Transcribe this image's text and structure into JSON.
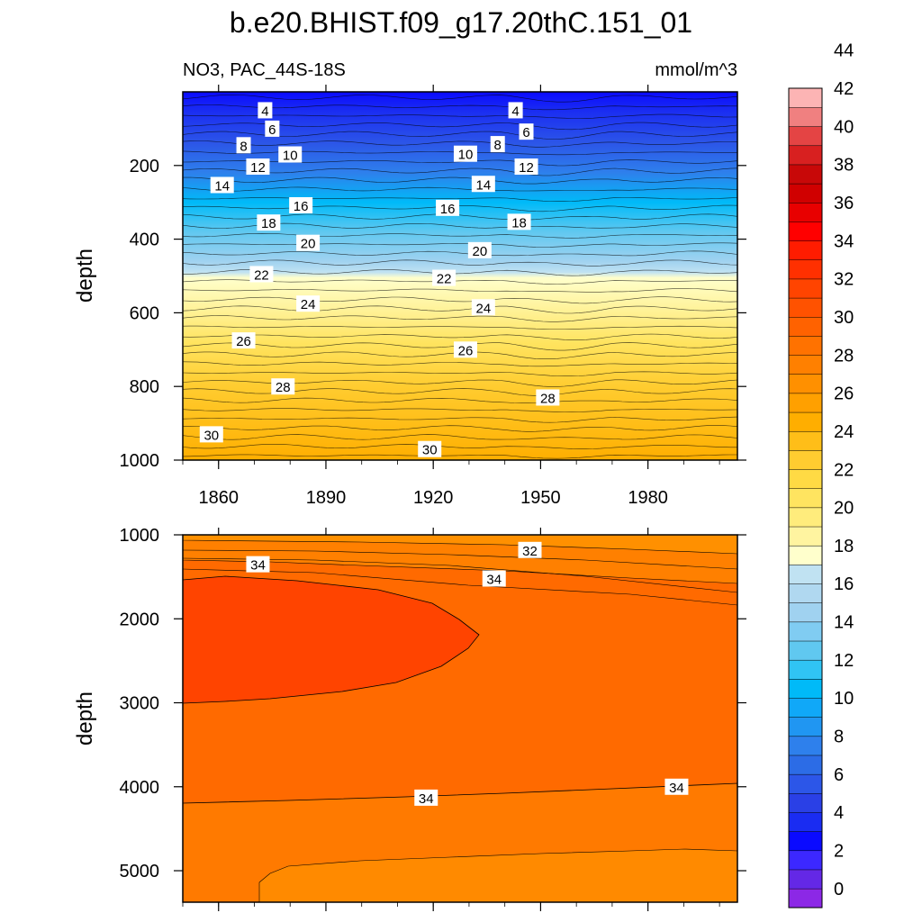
{
  "title": "b.e20.BHIST.f09_g17.20thC.151_01",
  "subtitle_left": "NO3, PAC_44S-18S",
  "subtitle_right": "mmol/m^3",
  "chart_data": [
    {
      "type": "heatmap",
      "panel": "upper",
      "ylabel": "depth",
      "xlim": [
        1850,
        2005
      ],
      "ylim": [
        1000,
        0
      ],
      "x_ticks": [
        1860,
        1890,
        1920,
        1950,
        1980
      ],
      "x_tick_labels": [
        "1860",
        "1890",
        "1920",
        "1950",
        "1980"
      ],
      "y_ticks": [
        200,
        400,
        600,
        800,
        1000
      ],
      "y_tick_labels": [
        "200",
        "400",
        "600",
        "800",
        "1000"
      ],
      "contour_labels": [
        {
          "x": 1873,
          "y": 50,
          "text": "4"
        },
        {
          "x": 1943,
          "y": 50,
          "text": "4"
        },
        {
          "x": 1875,
          "y": 100,
          "text": "6"
        },
        {
          "x": 1946,
          "y": 108,
          "text": "6"
        },
        {
          "x": 1867,
          "y": 145,
          "text": "8"
        },
        {
          "x": 1938,
          "y": 142,
          "text": "8"
        },
        {
          "x": 1880,
          "y": 170,
          "text": "10"
        },
        {
          "x": 1929,
          "y": 168,
          "text": "10"
        },
        {
          "x": 1871,
          "y": 203,
          "text": "12"
        },
        {
          "x": 1946,
          "y": 203,
          "text": "12"
        },
        {
          "x": 1861,
          "y": 253,
          "text": "14"
        },
        {
          "x": 1934,
          "y": 250,
          "text": "14"
        },
        {
          "x": 1883,
          "y": 308,
          "text": "16"
        },
        {
          "x": 1924,
          "y": 315,
          "text": "16"
        },
        {
          "x": 1874,
          "y": 355,
          "text": "18"
        },
        {
          "x": 1944,
          "y": 353,
          "text": "18"
        },
        {
          "x": 1885,
          "y": 410,
          "text": "20"
        },
        {
          "x": 1933,
          "y": 430,
          "text": "20"
        },
        {
          "x": 1872,
          "y": 495,
          "text": "22"
        },
        {
          "x": 1923,
          "y": 505,
          "text": "22"
        },
        {
          "x": 1885,
          "y": 575,
          "text": "24"
        },
        {
          "x": 1934,
          "y": 585,
          "text": "24"
        },
        {
          "x": 1867,
          "y": 675,
          "text": "26"
        },
        {
          "x": 1929,
          "y": 700,
          "text": "26"
        },
        {
          "x": 1878,
          "y": 800,
          "text": "28"
        },
        {
          "x": 1952,
          "y": 830,
          "text": "28"
        },
        {
          "x": 1858,
          "y": 930,
          "text": "30"
        },
        {
          "x": 1919,
          "y": 970,
          "text": "30"
        }
      ]
    },
    {
      "type": "heatmap",
      "panel": "lower",
      "ylabel": "depth",
      "xlim": [
        1850,
        2005
      ],
      "ylim": [
        5375,
        1000
      ],
      "x_ticks": [
        1860,
        1890,
        1920,
        1950,
        1980
      ],
      "y_ticks": [
        1000,
        2000,
        3000,
        4000,
        5000
      ],
      "y_tick_labels": [
        "1000",
        "2000",
        "3000",
        "4000",
        "5000"
      ],
      "contour_labels": [
        {
          "x": 1947,
          "y": 1180,
          "text": "32"
        },
        {
          "x": 1871,
          "y": 1350,
          "text": "34"
        },
        {
          "x": 1937,
          "y": 1520,
          "text": "34"
        },
        {
          "x": 1918,
          "y": 4130,
          "text": "34"
        },
        {
          "x": 1988,
          "y": 4000,
          "text": "34"
        }
      ]
    }
  ],
  "colorbar": {
    "labels": [
      "0",
      "2",
      "4",
      "6",
      "8",
      "10",
      "12",
      "14",
      "16",
      "18",
      "20",
      "22",
      "24",
      "26",
      "28",
      "30",
      "32",
      "34",
      "36",
      "38",
      "40",
      "42",
      "44"
    ],
    "colors": [
      "#8c28e6",
      "#6428e6",
      "#3c28ff",
      "#0a0aff",
      "#1a2cf2",
      "#2a40e6",
      "#2c56e8",
      "#2c6ce6",
      "#2e80ec",
      "#2096f2",
      "#10a8f8",
      "#00baf8",
      "#30c4f4",
      "#60c8f0",
      "#80ccf2",
      "#a0d2f0",
      "#b0d8f0",
      "#c0e2f2",
      "#ffffcc",
      "#fff4a0",
      "#ffec7c",
      "#ffe460",
      "#ffda44",
      "#ffcc30",
      "#ffbe18",
      "#ffae00",
      "#ffa000",
      "#ff9000",
      "#ff8000",
      "#ff7200",
      "#ff6200",
      "#ff5200",
      "#ff4400",
      "#ff3000",
      "#ff1c00",
      "#ff0000",
      "#e80000",
      "#d00000",
      "#c80808",
      "#d82020",
      "#e44444",
      "#f08080",
      "#fcb4b4"
    ]
  }
}
